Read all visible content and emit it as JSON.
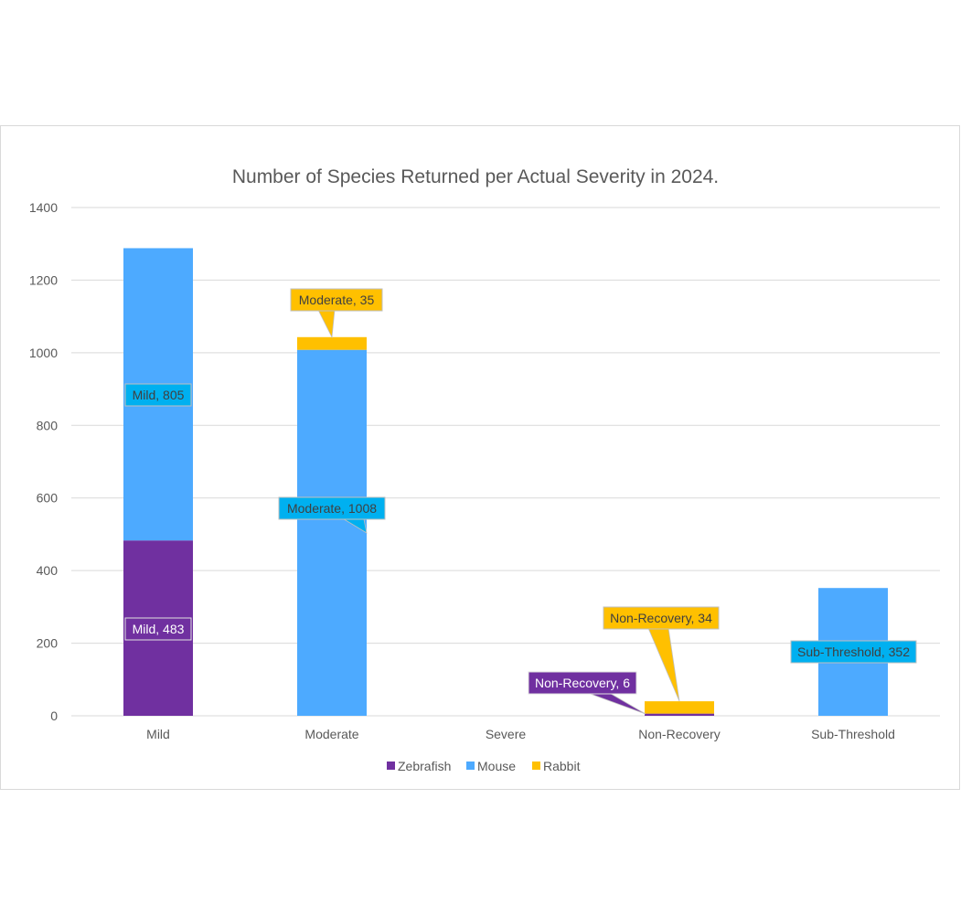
{
  "chart_data": {
    "type": "bar",
    "stacked": true,
    "title": "Number of Species Returned per Actual Severity in 2024.",
    "xlabel": "",
    "ylabel": "",
    "categories": [
      "Mild",
      "Moderate",
      "Severe",
      "Non-Recovery",
      "Sub-Threshold"
    ],
    "series": [
      {
        "name": "Zebrafish",
        "color": "#7030A0",
        "values": [
          483,
          0,
          0,
          6,
          0
        ]
      },
      {
        "name": "Mouse",
        "color": "#4DAAFF",
        "values": [
          805,
          1008,
          0,
          0,
          352
        ]
      },
      {
        "name": "Rabbit",
        "color": "#FFC000",
        "values": [
          0,
          35,
          0,
          34,
          0
        ]
      }
    ],
    "ylim": [
      0,
      1400
    ],
    "yticks": [
      "0",
      "200",
      "400",
      "600",
      "800",
      "1000",
      "1200",
      "1400"
    ],
    "grid": true,
    "legend": "bottom",
    "data_labels": [
      {
        "text": "Mild, 483",
        "series": 0,
        "category": 0
      },
      {
        "text": "Mild, 805",
        "series": 1,
        "category": 0
      },
      {
        "text": "Moderate, 35",
        "series": 2,
        "category": 1
      },
      {
        "text": "Moderate, 1008",
        "series": 1,
        "category": 1
      },
      {
        "text": "Non-Recovery, 34",
        "series": 2,
        "category": 3
      },
      {
        "text": "Non-Recovery, 6",
        "series": 0,
        "category": 3
      },
      {
        "text": "Sub-Threshold, 352",
        "series": 1,
        "category": 4
      }
    ]
  }
}
